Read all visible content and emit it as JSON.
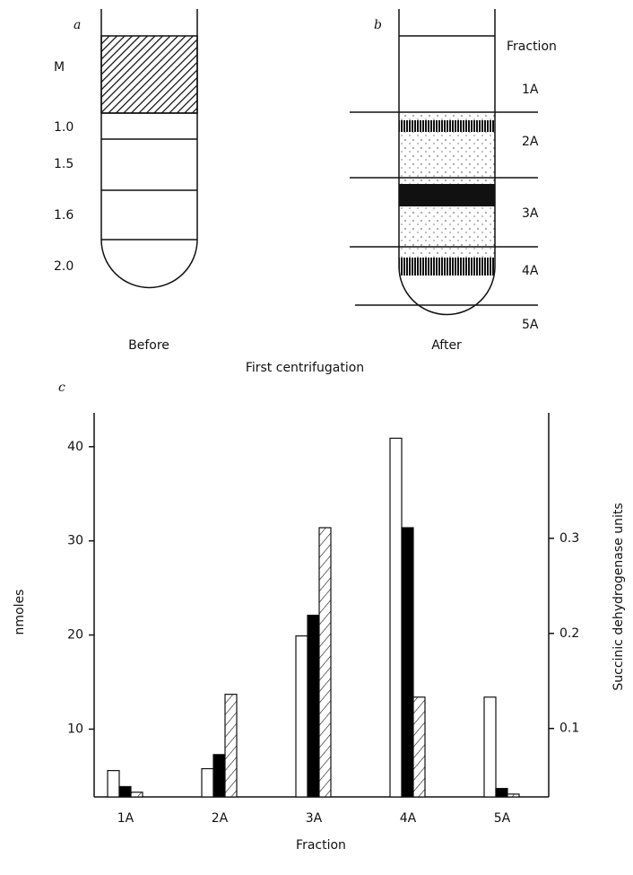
{
  "panel_a": {
    "letter": "a",
    "layer_labels": [
      "M",
      "1.0",
      "1.5",
      "1.6",
      "2.0"
    ],
    "caption": "Before"
  },
  "panel_b": {
    "letter": "b",
    "header": "Fraction",
    "fractions": [
      "1A",
      "2A",
      "3A",
      "4A",
      "5A"
    ],
    "caption": "After"
  },
  "figure_caption": "First centrifugation",
  "chart_data": {
    "type": "bar",
    "panel_letter": "c",
    "x_label": "Fraction",
    "y_label": "nmoles",
    "y2_label": "Succinic dehydrogenase units",
    "categories": [
      "1A",
      "2A",
      "3A",
      "4A",
      "5A"
    ],
    "series": [
      {
        "color": "#ffffff",
        "values": [
          5.6,
          5.8,
          19.9,
          40.9,
          13.4
        ]
      },
      {
        "color": "#000000",
        "values": [
          3.9,
          7.3,
          22.1,
          31.4,
          3.7
        ]
      },
      {
        "color": "#ffffff",
        "hatch": true,
        "values": [
          3.3,
          13.7,
          31.4,
          13.4,
          3.1
        ]
      }
    ],
    "ylim": [
      2.8,
      43.6
    ],
    "yticks": [
      10,
      20,
      30,
      40
    ],
    "y2lim": [
      0.028,
      0.432
    ],
    "y2ticks": [
      0.1,
      0.2,
      0.3
    ]
  }
}
